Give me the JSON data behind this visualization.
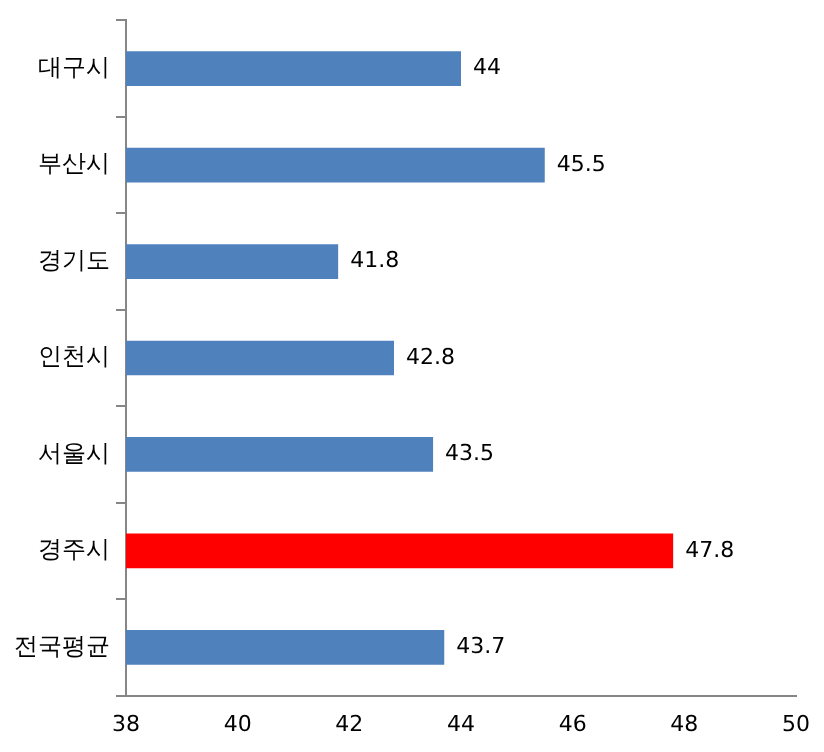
{
  "chart_data": {
    "type": "bar",
    "orientation": "horizontal",
    "categories": [
      "대구시",
      "부산시",
      "경기도",
      "인천시",
      "서울시",
      "경주시",
      "전국평균"
    ],
    "values": [
      44,
      45.5,
      41.8,
      42.8,
      43.5,
      47.8,
      43.7
    ],
    "colors": [
      "#4f81bd",
      "#4f81bd",
      "#4f81bd",
      "#4f81bd",
      "#4f81bd",
      "#ff0000",
      "#4f81bd"
    ],
    "xlim": [
      38,
      50
    ],
    "xticks": [
      38,
      40,
      42,
      44,
      46,
      48,
      50
    ],
    "data_labels": true,
    "grid": false,
    "legend": false
  }
}
